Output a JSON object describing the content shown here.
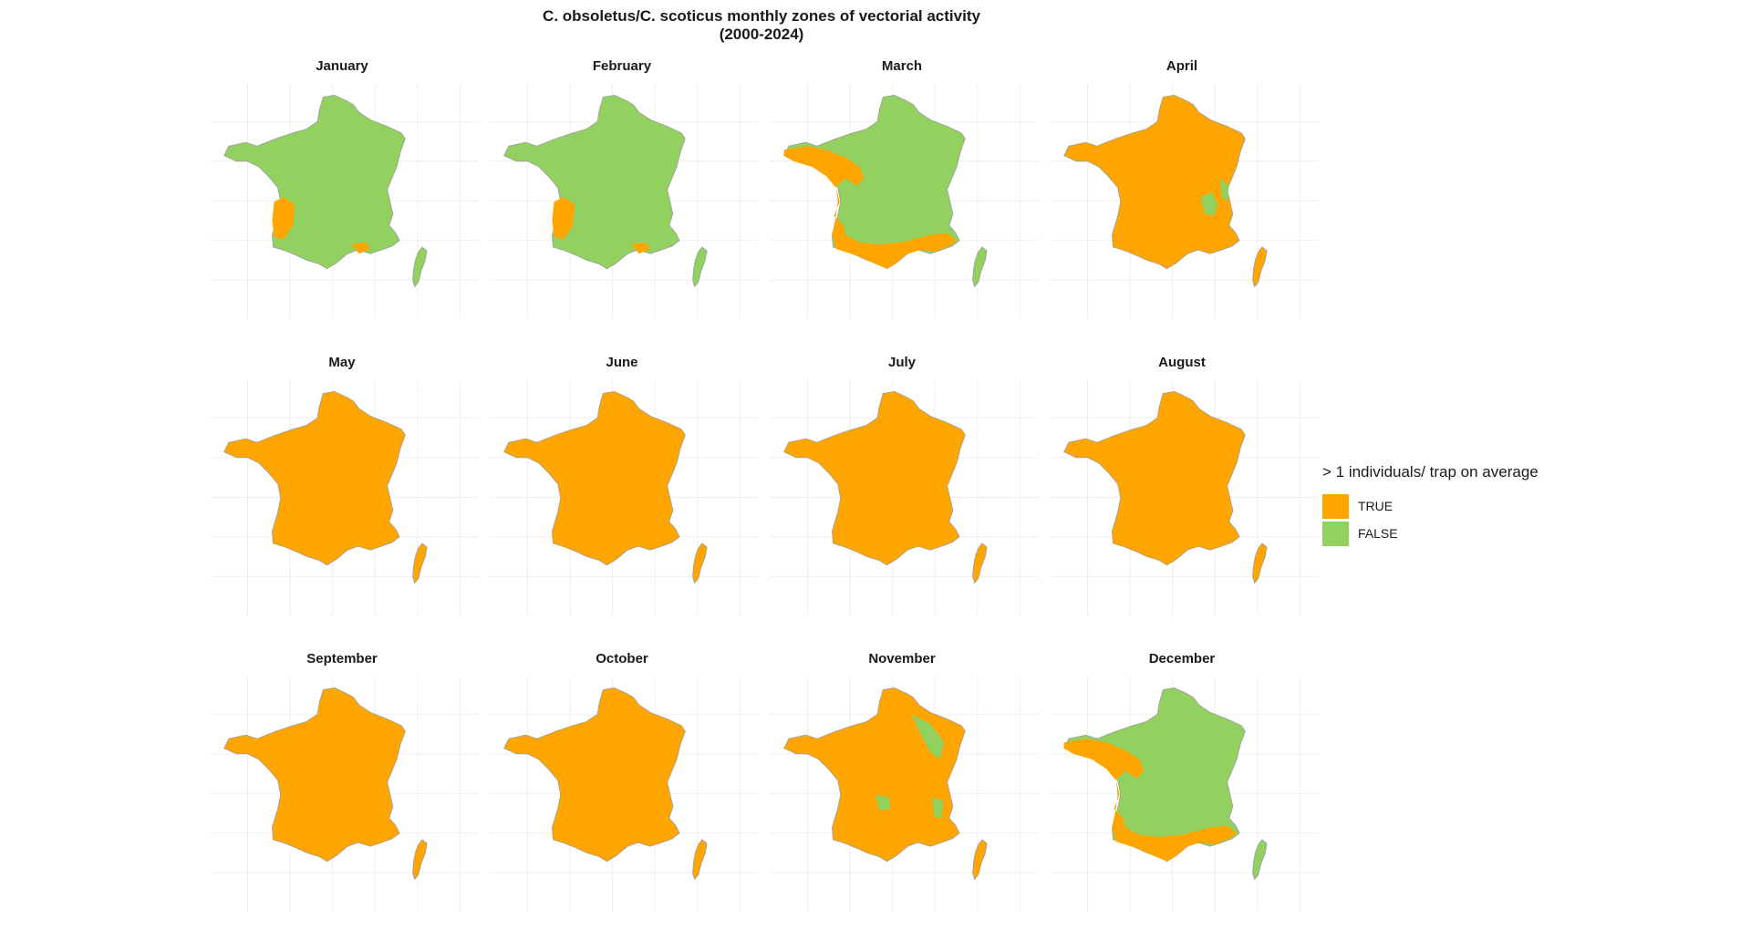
{
  "title_line1": "C. obsoletus/C. scoticus monthly zones of vectorial activity",
  "title_line2": "(2000-2024)",
  "legend": {
    "title": "> 1 individuals/ trap on average",
    "items": [
      {
        "label": "TRUE",
        "color": "#FFA500"
      },
      {
        "label": "FALSE",
        "color": "#92D060"
      }
    ]
  },
  "colors": {
    "true": "#FFA500",
    "false": "#92D060",
    "grid": "#ebebeb",
    "border": "#9e9e9e"
  },
  "months": [
    {
      "name": "January",
      "state": "mostly-false",
      "patches": "southwest-coast"
    },
    {
      "name": "February",
      "state": "mostly-false",
      "patches": "southwest-coast"
    },
    {
      "name": "March",
      "state": "mixed",
      "patches": "west-and-south"
    },
    {
      "name": "April",
      "state": "mostly-true",
      "patches": "alps"
    },
    {
      "name": "May",
      "state": "true",
      "patches": ""
    },
    {
      "name": "June",
      "state": "true",
      "patches": ""
    },
    {
      "name": "July",
      "state": "true",
      "patches": ""
    },
    {
      "name": "August",
      "state": "true",
      "patches": ""
    },
    {
      "name": "September",
      "state": "true",
      "patches": ""
    },
    {
      "name": "October",
      "state": "true",
      "patches": ""
    },
    {
      "name": "November",
      "state": "mostly-true",
      "patches": "northeast-and-alps"
    },
    {
      "name": "December",
      "state": "mostly-false",
      "patches": "west-and-south"
    }
  ]
}
